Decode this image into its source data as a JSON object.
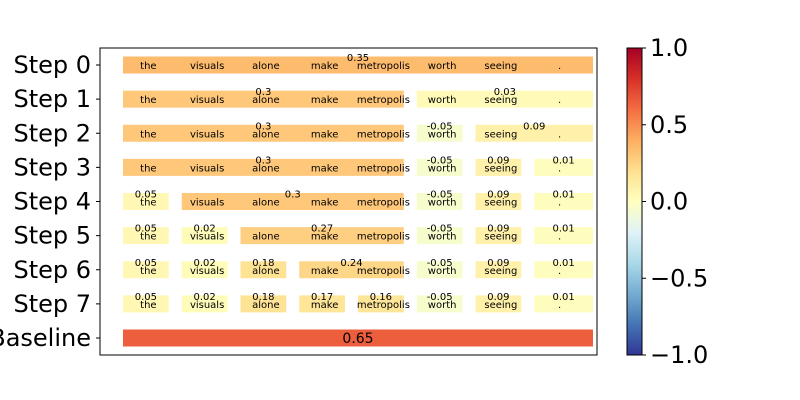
{
  "chart_data": {
    "type": "heatmap",
    "words": [
      "the",
      "visuals",
      "alone",
      "make",
      "metropolis",
      "worth",
      "seeing",
      "."
    ],
    "rows": [
      {
        "label": "Step 0",
        "segments": [
          {
            "start": 0,
            "end": 8,
            "value": 0.35,
            "value_label": "0.35"
          }
        ]
      },
      {
        "label": "Step 1",
        "segments": [
          {
            "start": 0,
            "end": 5,
            "value": 0.3,
            "value_label": "0.3"
          },
          {
            "start": 5,
            "end": 8,
            "value": 0.03,
            "value_label": "0.03"
          }
        ]
      },
      {
        "label": "Step 2",
        "segments": [
          {
            "start": 0,
            "end": 5,
            "value": 0.3,
            "value_label": "0.3"
          },
          {
            "start": 5,
            "end": 6,
            "value": -0.05,
            "value_label": "-0.05"
          },
          {
            "start": 6,
            "end": 8,
            "value": 0.09,
            "value_label": "0.09"
          }
        ]
      },
      {
        "label": "Step 3",
        "segments": [
          {
            "start": 0,
            "end": 5,
            "value": 0.3,
            "value_label": "0.3"
          },
          {
            "start": 5,
            "end": 6,
            "value": -0.05,
            "value_label": "-0.05"
          },
          {
            "start": 6,
            "end": 7,
            "value": 0.09,
            "value_label": "0.09"
          },
          {
            "start": 7,
            "end": 8,
            "value": 0.01,
            "value_label": "0.01"
          }
        ]
      },
      {
        "label": "Step 4",
        "segments": [
          {
            "start": 0,
            "end": 1,
            "value": 0.05,
            "value_label": "0.05"
          },
          {
            "start": 1,
            "end": 5,
            "value": 0.3,
            "value_label": "0.3"
          },
          {
            "start": 5,
            "end": 6,
            "value": -0.05,
            "value_label": "-0.05"
          },
          {
            "start": 6,
            "end": 7,
            "value": 0.09,
            "value_label": "0.09"
          },
          {
            "start": 7,
            "end": 8,
            "value": 0.01,
            "value_label": "0.01"
          }
        ]
      },
      {
        "label": "Step 5",
        "segments": [
          {
            "start": 0,
            "end": 1,
            "value": 0.05,
            "value_label": "0.05"
          },
          {
            "start": 1,
            "end": 2,
            "value": 0.02,
            "value_label": "0.02"
          },
          {
            "start": 2,
            "end": 5,
            "value": 0.27,
            "value_label": "0.27"
          },
          {
            "start": 5,
            "end": 6,
            "value": -0.05,
            "value_label": "-0.05"
          },
          {
            "start": 6,
            "end": 7,
            "value": 0.09,
            "value_label": "0.09"
          },
          {
            "start": 7,
            "end": 8,
            "value": 0.01,
            "value_label": "0.01"
          }
        ]
      },
      {
        "label": "Step 6",
        "segments": [
          {
            "start": 0,
            "end": 1,
            "value": 0.05,
            "value_label": "0.05"
          },
          {
            "start": 1,
            "end": 2,
            "value": 0.02,
            "value_label": "0.02"
          },
          {
            "start": 2,
            "end": 3,
            "value": 0.18,
            "value_label": "0.18"
          },
          {
            "start": 3,
            "end": 5,
            "value": 0.24,
            "value_label": "0.24"
          },
          {
            "start": 5,
            "end": 6,
            "value": -0.05,
            "value_label": "-0.05"
          },
          {
            "start": 6,
            "end": 7,
            "value": 0.09,
            "value_label": "0.09"
          },
          {
            "start": 7,
            "end": 8,
            "value": 0.01,
            "value_label": "0.01"
          }
        ]
      },
      {
        "label": "Step 7",
        "segments": [
          {
            "start": 0,
            "end": 1,
            "value": 0.05,
            "value_label": "0.05"
          },
          {
            "start": 1,
            "end": 2,
            "value": 0.02,
            "value_label": "0.02"
          },
          {
            "start": 2,
            "end": 3,
            "value": 0.18,
            "value_label": "0.18"
          },
          {
            "start": 3,
            "end": 4,
            "value": 0.17,
            "value_label": "0.17"
          },
          {
            "start": 4,
            "end": 5,
            "value": 0.16,
            "value_label": "0.16"
          },
          {
            "start": 5,
            "end": 6,
            "value": -0.05,
            "value_label": "-0.05"
          },
          {
            "start": 6,
            "end": 7,
            "value": 0.09,
            "value_label": "0.09"
          },
          {
            "start": 7,
            "end": 8,
            "value": 0.01,
            "value_label": "0.01"
          }
        ]
      },
      {
        "label": "Baseline",
        "show_words": false,
        "segments": [
          {
            "start": 0,
            "end": 8,
            "value": 0.65,
            "value_label": "0.65"
          }
        ]
      }
    ],
    "colorbar": {
      "colormap": "RdYlBu_r",
      "min": -1.0,
      "max": 1.0,
      "ticks": [
        "1.0",
        "0.5",
        "0.0",
        "−0.5",
        "−1.0"
      ],
      "tick_values": [
        1.0,
        0.5,
        0.0,
        -0.5,
        -1.0
      ]
    },
    "colors": {
      "colormap_stops": [
        "#313695",
        "#4575b4",
        "#74add1",
        "#abd9e9",
        "#e0f3f8",
        "#ffffbf",
        "#fee090",
        "#fdae61",
        "#f46d43",
        "#d73027",
        "#a50026"
      ]
    },
    "title": "",
    "xlabel": "",
    "ylabel": "",
    "grid": false
  }
}
